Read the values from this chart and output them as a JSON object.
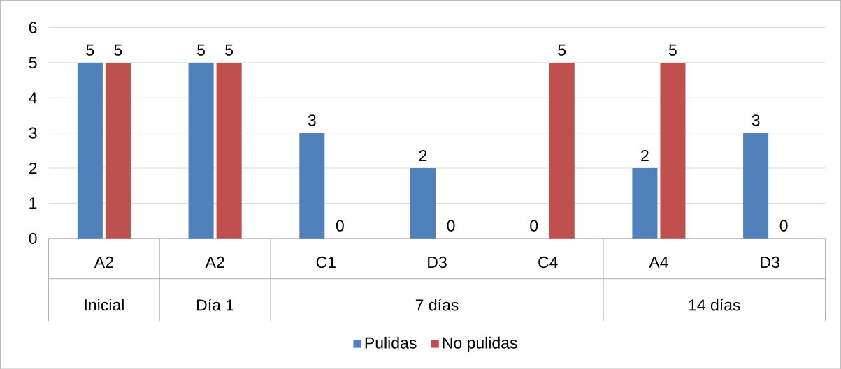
{
  "chart_data": {
    "type": "bar",
    "categories": [
      "A2",
      "A2",
      "C1",
      "D3",
      "C4",
      "A4",
      "D3"
    ],
    "annotations": [
      "Inicial",
      "Día 1",
      "7 días",
      "14 días"
    ],
    "series": [
      {
        "name": "Pulidas",
        "color": "#4f81bd",
        "values": [
          5,
          5,
          3,
          2,
          0,
          2,
          3
        ]
      },
      {
        "name": "No pulidas",
        "color": "#c0504d",
        "values": [
          5,
          5,
          0,
          0,
          5,
          5,
          0
        ]
      }
    ],
    "ylim": [
      0,
      6
    ],
    "yticks": [
      0,
      1,
      2,
      3,
      4,
      5,
      6
    ],
    "grid": "y",
    "data_labels": true,
    "legend": "bottom"
  }
}
